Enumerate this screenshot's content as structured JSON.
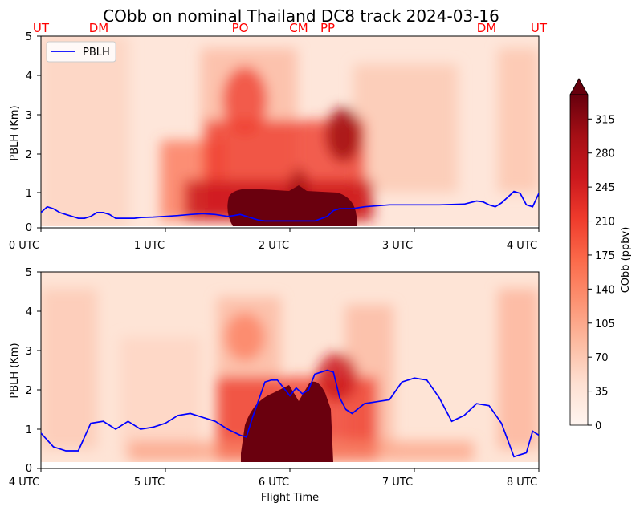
{
  "figure": {
    "title": "CObb on nominal Thailand DC8 track 2024-03-16",
    "xlabel": "Flight Time",
    "colorbar_label": "CObb (ppbv)",
    "colorbar_ticks": [
      "0",
      "35",
      "70",
      "105",
      "140",
      "175",
      "210",
      "245",
      "280",
      "315"
    ],
    "colorbar_range": [
      0,
      340
    ],
    "colormap": "Reds",
    "colors": {
      "pblh_line": "#0000ff",
      "site_label": "#ff0000"
    }
  },
  "site_labels": [
    "UT",
    "DM",
    "PO",
    "CM",
    "PP",
    "DM",
    "UT"
  ],
  "chart_data": [
    {
      "type": "heatmap",
      "panel": "top",
      "ylabel": "PBLH (Km)",
      "ylim": [
        0,
        5
      ],
      "yticks": [
        "0",
        "1",
        "2",
        "3",
        "4",
        "5"
      ],
      "xticks": [
        "0 UTC",
        "1 UTC",
        "2 UTC",
        "3 UTC",
        "4 UTC"
      ],
      "xlim_hours": [
        0,
        4
      ],
      "legend": {
        "label": "PBLH",
        "placement": "top-left"
      },
      "series": [
        {
          "name": "PBLH",
          "x_hours": [
            0,
            0.05,
            0.1,
            0.15,
            0.2,
            0.25,
            0.3,
            0.35,
            0.4,
            0.45,
            0.5,
            0.55,
            0.6,
            0.65,
            0.7,
            0.75,
            0.8,
            0.9,
            1.0,
            1.1,
            1.2,
            1.3,
            1.4,
            1.5,
            1.55,
            1.6,
            1.65,
            1.7,
            1.75,
            1.8,
            1.9,
            2.0,
            2.1,
            2.2,
            2.3,
            2.35,
            2.4,
            2.5,
            2.6,
            2.8,
            3.0,
            3.2,
            3.4,
            3.5,
            3.55,
            3.6,
            3.65,
            3.7,
            3.75,
            3.8,
            3.85,
            3.9,
            3.95,
            4.0
          ],
          "y_km": [
            0.4,
            0.55,
            0.5,
            0.4,
            0.35,
            0.3,
            0.25,
            0.25,
            0.3,
            0.4,
            0.4,
            0.35,
            0.25,
            0.25,
            0.25,
            0.25,
            0.27,
            0.28,
            0.3,
            0.32,
            0.35,
            0.37,
            0.35,
            0.3,
            0.32,
            0.35,
            0.3,
            0.25,
            0.2,
            0.18,
            0.18,
            0.18,
            0.18,
            0.18,
            0.3,
            0.45,
            0.5,
            0.5,
            0.55,
            0.6,
            0.6,
            0.6,
            0.62,
            0.7,
            0.68,
            0.6,
            0.55,
            0.65,
            0.8,
            0.95,
            0.9,
            0.6,
            0.55,
            0.9
          ]
        }
      ]
    },
    {
      "type": "heatmap",
      "panel": "bottom",
      "ylabel": "PBLH (Km)",
      "ylim": [
        0,
        5
      ],
      "yticks": [
        "0",
        "1",
        "2",
        "3",
        "4",
        "5"
      ],
      "xticks": [
        "4 UTC",
        "5 UTC",
        "6 UTC",
        "7 UTC",
        "8 UTC"
      ],
      "xlim_hours": [
        4,
        8
      ],
      "series": [
        {
          "name": "PBLH",
          "x_hours": [
            4.0,
            4.1,
            4.2,
            4.3,
            4.4,
            4.5,
            4.6,
            4.7,
            4.8,
            4.9,
            5.0,
            5.1,
            5.2,
            5.3,
            5.4,
            5.5,
            5.6,
            5.65,
            5.7,
            5.8,
            5.85,
            5.9,
            6.0,
            6.05,
            6.1,
            6.15,
            6.2,
            6.25,
            6.3,
            6.35,
            6.4,
            6.45,
            6.5,
            6.6,
            6.7,
            6.8,
            6.9,
            7.0,
            7.1,
            7.2,
            7.3,
            7.4,
            7.5,
            7.6,
            7.7,
            7.8,
            7.9,
            7.95,
            8.0
          ],
          "y_km": [
            0.9,
            0.55,
            0.45,
            0.45,
            1.15,
            1.2,
            1.0,
            1.2,
            1.0,
            1.05,
            1.15,
            1.35,
            1.4,
            1.3,
            1.2,
            1.0,
            0.85,
            0.8,
            1.3,
            2.2,
            2.25,
            2.25,
            1.85,
            2.05,
            1.9,
            2.0,
            2.4,
            2.45,
            2.5,
            2.45,
            1.8,
            1.5,
            1.4,
            1.65,
            1.7,
            1.75,
            2.2,
            2.3,
            2.25,
            1.8,
            1.2,
            1.35,
            1.65,
            1.6,
            1.15,
            0.3,
            0.4,
            0.95,
            0.85
          ]
        }
      ]
    }
  ]
}
